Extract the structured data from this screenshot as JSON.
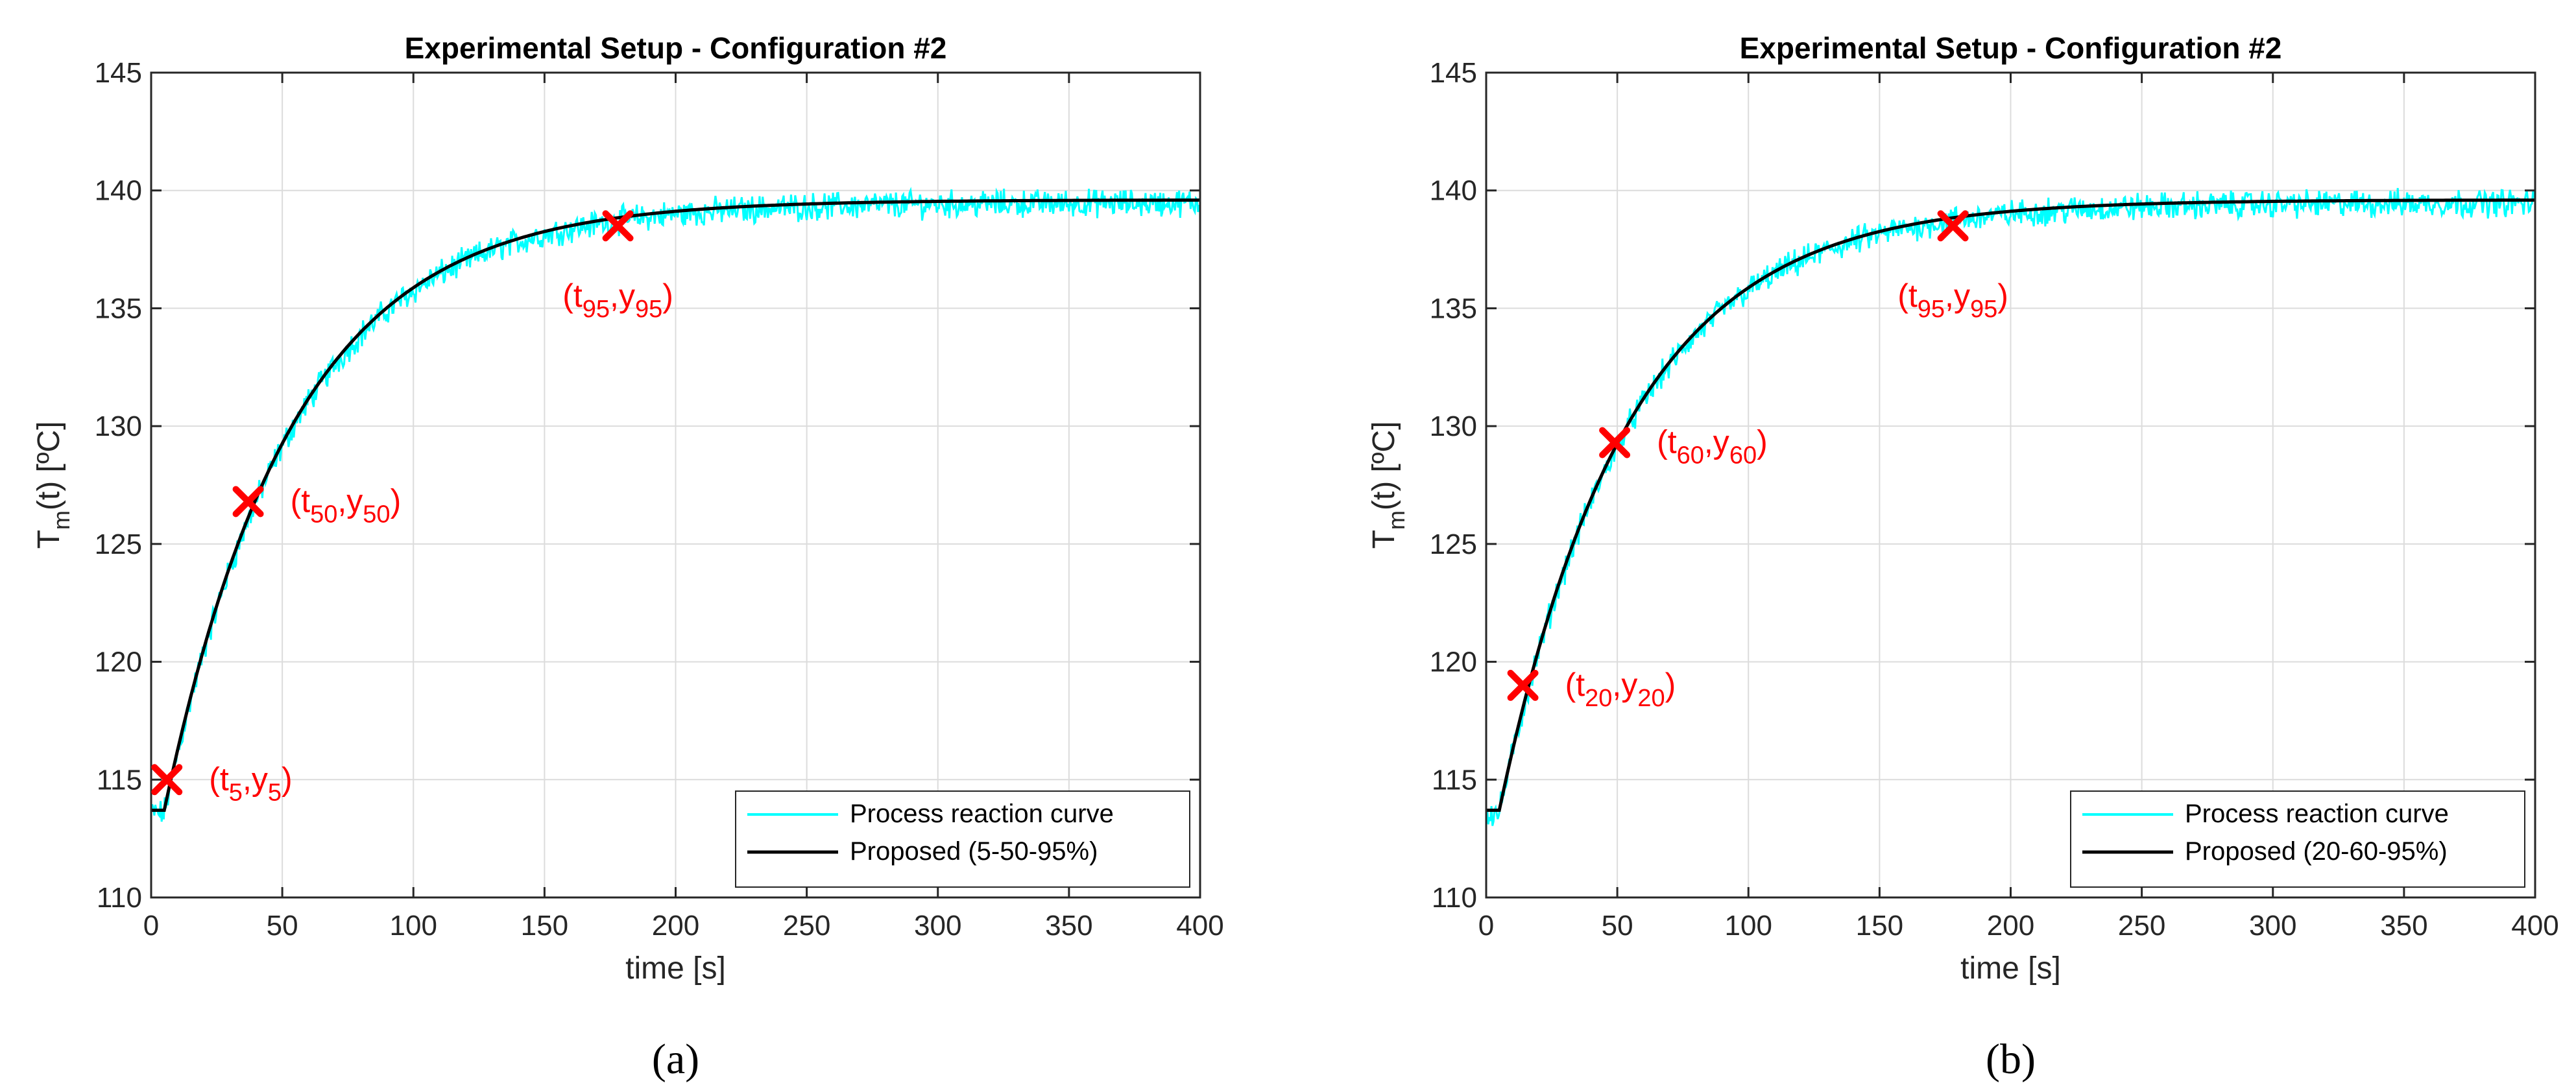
{
  "chart_data": [
    {
      "type": "line",
      "title": "Experimental Setup - Configuration #2",
      "xlabel": "time [s]",
      "ylabel_main": "T",
      "ylabel_sub": "m",
      "ylabel_rest": "(t) [ºC]",
      "xlim": [
        0,
        400
      ],
      "ylim": [
        110,
        145
      ],
      "x_ticks": [
        0,
        50,
        100,
        150,
        200,
        250,
        300,
        350,
        400
      ],
      "y_ticks": [
        110,
        115,
        120,
        125,
        130,
        135,
        140,
        145
      ],
      "grid": true,
      "legend_position": "bottom-right",
      "model": {
        "y0": 113.7,
        "yinf": 139.6,
        "delay": 5,
        "tau": 49
      },
      "series": [
        {
          "name": "Process reaction curve",
          "color": "#00ffff",
          "kind": "noisy-measured"
        },
        {
          "name": "Proposed (5-50-95%)",
          "color": "#000000",
          "kind": "model"
        }
      ],
      "markers": [
        {
          "t": 6,
          "y": 115.0,
          "label_main": "(t",
          "sub1": "5",
          "label_mid": ",y",
          "sub2": "5",
          "label_end": ")",
          "label_side": "right"
        },
        {
          "t": 37,
          "y": 126.8,
          "label_main": "(t",
          "sub1": "50",
          "label_mid": ",y",
          "sub2": "50",
          "label_end": ")",
          "label_side": "right"
        },
        {
          "t": 178,
          "y": 138.5,
          "label_main": "(t",
          "sub1": "95",
          "label_mid": ",y",
          "sub2": "95",
          "label_end": ")",
          "label_side": "below"
        }
      ],
      "subfigure_label": "(a)"
    },
    {
      "type": "line",
      "title": "Experimental Setup - Configuration #2",
      "xlabel": "time [s]",
      "ylabel_main": "T",
      "ylabel_sub": "m",
      "ylabel_rest": "(t) [ºC]",
      "xlim": [
        0,
        400
      ],
      "ylim": [
        110,
        145
      ],
      "x_ticks": [
        0,
        50,
        100,
        150,
        200,
        250,
        300,
        350,
        400
      ],
      "y_ticks": [
        110,
        115,
        120,
        125,
        130,
        135,
        140,
        145
      ],
      "grid": true,
      "legend_position": "bottom-right",
      "model": {
        "y0": 113.7,
        "yinf": 139.6,
        "delay": 5,
        "tau": 49
      },
      "series": [
        {
          "name": "Process reaction curve",
          "color": "#00ffff",
          "kind": "noisy-measured"
        },
        {
          "name": "Proposed (20-60-95%)",
          "color": "#000000",
          "kind": "model"
        }
      ],
      "markers": [
        {
          "t": 14,
          "y": 119.0,
          "label_main": "(t",
          "sub1": "20",
          "label_mid": ",y",
          "sub2": "20",
          "label_end": ")",
          "label_side": "right"
        },
        {
          "t": 49,
          "y": 129.3,
          "label_main": "(t",
          "sub1": "60",
          "label_mid": ",y",
          "sub2": "60",
          "label_end": ")",
          "label_side": "right"
        },
        {
          "t": 178,
          "y": 138.5,
          "label_main": "(t",
          "sub1": "95",
          "label_mid": ",y",
          "sub2": "95",
          "label_end": ")",
          "label_side": "below"
        }
      ],
      "subfigure_label": "(b)"
    }
  ],
  "colors": {
    "grid": "#dcdcdc",
    "axis": "#262626",
    "marker": "#ff0000"
  }
}
